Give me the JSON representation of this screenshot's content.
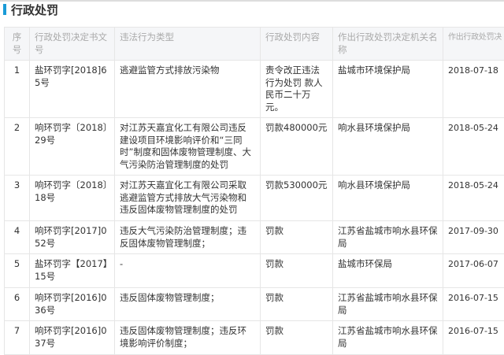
{
  "title": "行政处罚",
  "headers": [
    "序号",
    "行政处罚决定书文号",
    "违法行为类型",
    "行政处罚内容",
    "作出行政处罚决定机关名称",
    "作出行政处罚决"
  ],
  "rows": [
    [
      "1",
      "盐环罚字[2018]65号",
      "逃避监管方式排放污染物",
      "责令改正违法行为处罚 款人民币二十万元。",
      "盐城市环境保护局",
      "2018-07-18"
    ],
    [
      "2",
      "响环罚字〔2018〕29号",
      "对江苏天嘉宜化工有限公司违反建设项目环境影响评价和“三同时”制度和固体废物管理制度、大气污染防治管理制度的处罚",
      "罚款480000元",
      "响水县环境保护局",
      "2018-05-24"
    ],
    [
      "3",
      "响环罚字〔2018〕18号",
      "对江苏天嘉宜化工有限公司采取逃避监管方式排放大气污染物和违反固体废物管理制度的处罚",
      "罚款530000元",
      "响水县环境保护局",
      "2018-05-24"
    ],
    [
      "4",
      "响环罚字[2017]052号",
      "违反大气污染防治管理制度；违反固体废物管理制度；",
      "罚款",
      "江苏省盐城市响水县环保局",
      "2017-09-30"
    ],
    [
      "5",
      "盐环罚字【2017】15号",
      "-",
      "罚款",
      "盐城市环保局",
      "2017-06-07"
    ],
    [
      "6",
      "响环罚字[2016]036号",
      "违反固体废物管理制度；",
      "罚款",
      "江苏省盐城市响水县环保局",
      "2016-07-15"
    ],
    [
      "7",
      "响环罚字[2016]037号",
      "违反固体废物管理制度；违反环境影响评价制度；",
      "罚款",
      "江苏省盐城市响水县环保局",
      "2016-07-15"
    ]
  ]
}
